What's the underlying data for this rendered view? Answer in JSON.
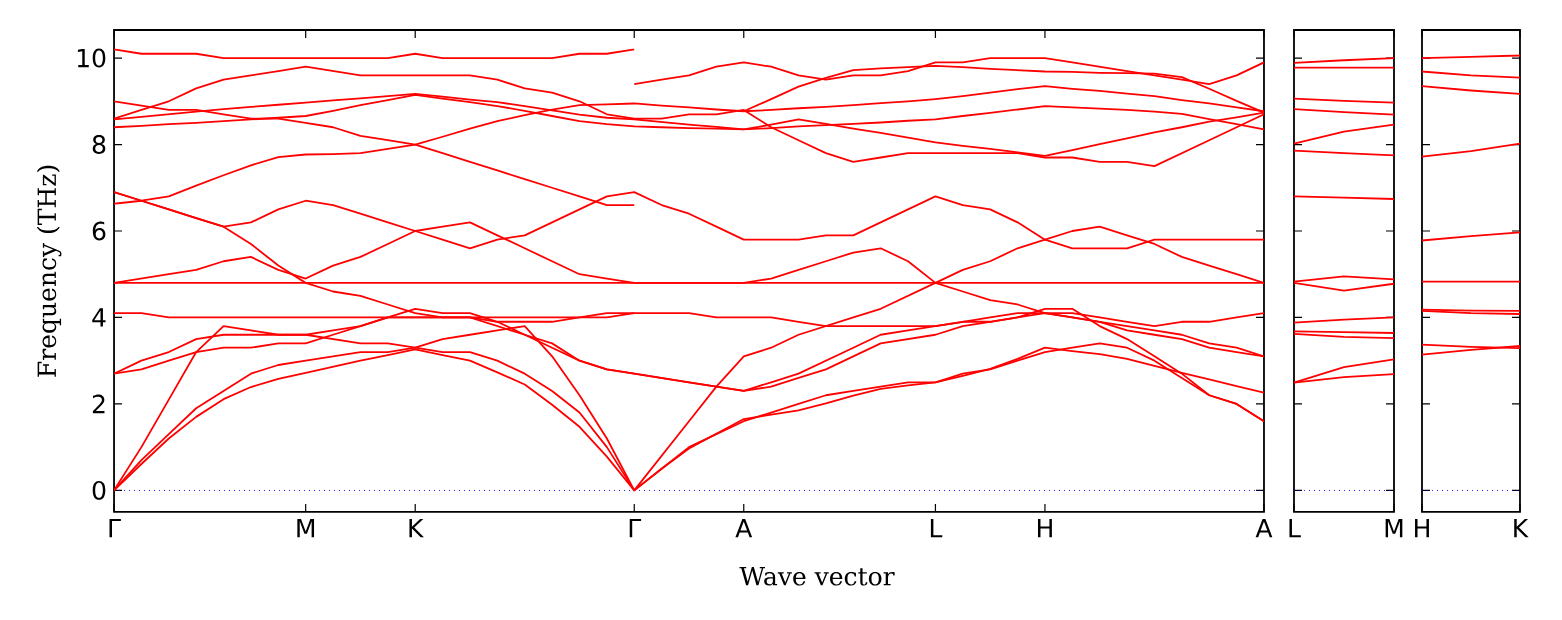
{
  "chart_data": [
    {
      "type": "line",
      "ylabel": "Frequency (THz)",
      "xlabel": "Wave vector",
      "color": "#ff0000",
      "categories": [
        "Γ",
        null,
        null,
        null,
        null,
        null,
        null,
        "M",
        null,
        null,
        null,
        "K",
        null,
        null,
        null,
        null,
        null,
        null,
        null,
        "Γ",
        null,
        null,
        null,
        "A",
        null,
        null,
        null,
        null,
        null,
        null,
        "L",
        null,
        null,
        null,
        "H",
        null,
        null,
        null,
        null,
        null,
        null,
        null,
        "A"
      ],
      "ylim": [
        -0.5,
        10.65
      ],
      "yticks": [
        0,
        2,
        4,
        6,
        8,
        10
      ],
      "ref_lines": [
        {
          "axis": "y",
          "value": 0,
          "color": "#0000ff",
          "line_style": "dotted"
        }
      ],
      "series": [
        {
          "values": [
            0,
            0.61,
            1.2,
            1.7,
            2.11,
            2.39,
            2.58,
            2.72,
            2.86,
            3,
            3.13,
            3.26,
            3.13,
            3,
            2.73,
            2.45,
            1.98,
            1.47,
            0.78,
            0,
            0.5,
            0.97,
            1.31,
            1.65,
            1.75,
            1.85,
            2.01,
            2.19,
            2.35,
            2.43,
            2.5,
            2.65,
            2.81,
            3.04,
            3.3,
            3.22,
            3.15,
            3.04,
            2.88,
            2.72,
            2.57,
            2.41,
            2.26
          ]
        },
        {
          "values": [
            0,
            0.7,
            1.3,
            1.9,
            2.3,
            2.7,
            2.9,
            3.0,
            3.1,
            3.2,
            3.2,
            3.3,
            3.2,
            3.2,
            3.0,
            2.7,
            2.3,
            1.8,
            1.0,
            0,
            0.5,
            1.0,
            1.3,
            1.6,
            1.8,
            2.0,
            2.2,
            2.3,
            2.4,
            2.5,
            2.5,
            2.7,
            2.8,
            3.0,
            3.2,
            3.3,
            3.4,
            3.3,
            3.0,
            2.6,
            2.2,
            2.0,
            1.6
          ]
        },
        {
          "values": [
            0,
            1.0,
            2.1,
            3.2,
            3.8,
            3.7,
            3.6,
            3.6,
            3.5,
            3.4,
            3.4,
            3.3,
            3.5,
            3.6,
            3.7,
            3.8,
            3.1,
            2.2,
            1.2,
            0,
            0.8,
            1.6,
            2.4,
            3.1,
            3.3,
            3.6,
            3.8,
            4.0,
            4.2,
            4.5,
            4.8,
            5.1,
            5.3,
            5.6,
            5.8,
            6.0,
            6.1,
            5.9,
            5.7,
            5.4,
            5.2,
            5.0,
            4.8
          ]
        },
        {
          "values": [
            2.7,
            2.8,
            3.0,
            3.2,
            3.3,
            3.3,
            3.4,
            3.4,
            3.6,
            3.8,
            4.0,
            4.2,
            4.1,
            4.1,
            3.9,
            3.6,
            3.3,
            3.0,
            2.8,
            2.7,
            2.6,
            2.5,
            2.4,
            2.3,
            2.4,
            2.6,
            2.8,
            3.1,
            3.4,
            3.5,
            3.6,
            3.8,
            3.9,
            4.0,
            4.2,
            4.2,
            3.8,
            3.5,
            3.1,
            2.7,
            2.2,
            2.0,
            1.6
          ]
        },
        {
          "values": [
            6.9,
            6.7,
            6.5,
            6.3,
            6.1,
            5.7,
            5.2,
            4.8,
            4.6,
            4.5,
            4.3,
            4.1,
            4.0,
            4.0,
            3.8,
            3.6,
            3.4,
            3.0,
            2.8,
            2.7,
            2.6,
            2.5,
            2.4,
            2.3,
            2.5,
            2.7,
            3.0,
            3.3,
            3.6,
            3.7,
            3.8,
            3.9,
            3.9,
            4.0,
            4.1,
            4.0,
            3.9,
            3.7,
            3.6,
            3.5,
            3.3,
            3.2,
            3.1
          ]
        },
        {
          "values": [
            2.7,
            3.0,
            3.2,
            3.5,
            3.6,
            3.6,
            3.6,
            3.6,
            3.7,
            3.8,
            4.0,
            4.0,
            4.0,
            4.0,
            3.9,
            3.9,
            3.9,
            4.0,
            4.0,
            4.1,
            4.1,
            4.1,
            4.0,
            4.0,
            4.0,
            3.9,
            3.8,
            3.8,
            3.8,
            3.8,
            3.8,
            3.9,
            4.0,
            4.1,
            4.1,
            4.1,
            4.0,
            3.9,
            3.8,
            3.9,
            3.9,
            4.0,
            4.1
          ]
        },
        {
          "values": [
            4.1,
            4.1,
            4.0,
            4.0,
            4.0,
            4.0,
            4.0,
            4.0,
            4.0,
            4.0,
            4.0,
            4.0,
            4.0,
            4.0,
            4.0,
            4.0,
            4.0,
            4.0,
            4.1,
            4.1,
            null,
            null,
            null,
            null,
            null,
            null,
            null,
            null,
            null,
            null,
            null,
            null,
            null,
            null,
            null,
            null,
            null,
            null,
            null,
            null,
            null,
            null,
            null
          ]
        },
        {
          "values": [
            4.8,
            4.8,
            4.8,
            4.8,
            4.8,
            4.8,
            4.8,
            4.8,
            4.8,
            4.8,
            4.8,
            4.8,
            4.8,
            4.8,
            4.8,
            4.8,
            4.8,
            4.8,
            4.8,
            4.8,
            4.8,
            4.8,
            4.8,
            4.8,
            4.8,
            4.8,
            4.8,
            4.8,
            4.8,
            4.8,
            4.8,
            4.8,
            4.8,
            4.8,
            4.8,
            4.8,
            4.8,
            4.8,
            4.8,
            4.8,
            4.8,
            4.8,
            4.8
          ]
        },
        {
          "values": [
            4.8,
            4.9,
            5.0,
            5.1,
            5.3,
            5.4,
            5.1,
            4.9,
            5.2,
            5.4,
            5.7,
            6.0,
            6.1,
            6.2,
            5.9,
            5.6,
            5.3,
            5.0,
            4.9,
            4.8,
            4.8,
            4.8,
            4.8,
            4.8,
            4.9,
            5.1,
            5.3,
            5.5,
            5.6,
            5.3,
            4.8,
            4.6,
            4.4,
            4.3,
            4.1,
            4.0,
            3.9,
            3.8,
            3.7,
            3.6,
            3.4,
            3.3,
            3.1
          ]
        },
        {
          "values": [
            6.9,
            6.7,
            6.5,
            6.3,
            6.1,
            6.2,
            6.5,
            6.7,
            6.6,
            6.4,
            6.2,
            6.0,
            5.8,
            5.6,
            5.8,
            5.9,
            6.2,
            6.5,
            6.8,
            6.9,
            6.6,
            6.4,
            6.1,
            5.8,
            5.8,
            5.8,
            5.9,
            5.9,
            6.2,
            6.5,
            6.8,
            6.6,
            6.5,
            6.2,
            5.8,
            5.6,
            5.6,
            5.6,
            5.8,
            5.8,
            5.8,
            5.8,
            5.8
          ]
        },
        {
          "values": [
            10.2,
            10.1,
            10.1,
            10.1,
            10.0,
            10.0,
            10.0,
            10.0,
            10.0,
            10.0,
            10.0,
            10.1,
            10.0,
            10.0,
            10.0,
            10.0,
            10.0,
            10.1,
            10.1,
            10.2,
            null,
            null,
            null,
            null,
            null,
            null,
            null,
            null,
            null,
            null,
            null,
            null,
            null,
            null,
            null,
            null,
            null,
            null,
            null,
            null,
            null,
            null,
            null
          ]
        },
        {
          "values": [
            null,
            null,
            null,
            null,
            null,
            null,
            null,
            null,
            null,
            null,
            null,
            null,
            null,
            null,
            null,
            null,
            null,
            null,
            null,
            9.4,
            9.5,
            9.6,
            9.8,
            9.9,
            9.8,
            9.6,
            9.5,
            9.6,
            9.6,
            9.7,
            9.9,
            9.9,
            10.0,
            10.0,
            10.0,
            9.9,
            9.8,
            9.7,
            9.6,
            9.5,
            9.4,
            9.6,
            9.9
          ]
        },
        {
          "values": [
            8.6,
            8.8,
            9.0,
            9.3,
            9.5,
            9.6,
            9.7,
            9.8,
            9.7,
            9.6,
            9.6,
            9.6,
            9.6,
            9.6,
            9.5,
            9.3,
            9.2,
            9.0,
            8.7,
            8.6,
            8.6,
            8.7,
            8.7,
            8.8,
            8.4,
            8.1,
            7.8,
            7.6,
            7.7,
            7.8,
            7.8,
            7.8,
            7.8,
            7.8,
            7.7,
            7.7,
            7.6,
            7.6,
            7.5,
            7.8,
            8.1,
            8.4,
            8.7
          ]
        },
        {
          "values": [
            9.0,
            8.9,
            8.8,
            8.8,
            8.7,
            8.6,
            8.6,
            8.5,
            8.4,
            8.2,
            8.1,
            8.0,
            7.8,
            7.6,
            7.4,
            7.2,
            7.0,
            6.8,
            6.6,
            6.6,
            null,
            null,
            null,
            null,
            null,
            null,
            null,
            null,
            null,
            null,
            null,
            null,
            null,
            null,
            null,
            null,
            null,
            null,
            null,
            null,
            null,
            null,
            null
          ]
        },
        {
          "values": [
            null,
            null,
            null,
            null,
            null,
            null,
            null,
            null,
            null,
            null,
            null,
            null,
            null,
            null,
            null,
            null,
            null,
            null,
            null,
            null,
            null,
            null,
            null,
            8.77,
            9.05,
            9.34,
            9.54,
            9.72,
            9.76,
            9.79,
            9.82,
            9.79,
            9.75,
            9.72,
            9.69,
            9.68,
            9.66,
            9.65,
            9.64,
            9.56,
            9.29,
            9.01,
            8.74
          ]
        },
        {
          "values": [
            6.63,
            6.7,
            6.8,
            7.05,
            7.29,
            7.52,
            7.71,
            7.77,
            7.78,
            7.8,
            7.9,
            8,
            8.18,
            8.37,
            8.54,
            8.68,
            8.81,
            8.91,
            8.93,
            8.95,
            8.9,
            8.86,
            8.81,
            8.77,
            8.8,
            8.84,
            8.87,
            8.91,
            8.96,
            9,
            9.05,
            9.12,
            9.2,
            9.28,
            9.35,
            9.29,
            9.24,
            9.18,
            9.12,
            9.03,
            8.95,
            8.86,
            8.77
          ]
        },
        {
          "values": [
            8.58,
            8.64,
            8.7,
            8.76,
            8.82,
            8.87,
            8.92,
            8.97,
            9.02,
            9.07,
            9.12,
            9.17,
            9.11,
            9.04,
            8.98,
            8.89,
            8.79,
            8.69,
            8.62,
            8.58,
            8.52,
            8.46,
            8.41,
            8.35,
            8.38,
            8.42,
            8.45,
            8.48,
            8.51,
            8.55,
            8.58,
            8.66,
            8.73,
            8.81,
            8.89,
            8.86,
            8.83,
            8.8,
            8.76,
            8.71,
            8.59,
            8.47,
            8.35
          ]
        },
        {
          "values": [
            8.4,
            8.43,
            8.47,
            8.5,
            8.54,
            8.58,
            8.62,
            8.66,
            8.78,
            8.91,
            9.03,
            9.15,
            9.06,
            8.98,
            8.89,
            8.78,
            8.66,
            8.54,
            8.47,
            8.42,
            8.4,
            8.38,
            8.37,
            8.35,
            8.46,
            8.58,
            8.48,
            8.37,
            8.27,
            8.16,
            8.05,
            7.97,
            7.9,
            7.82,
            7.74,
            7.87,
            8.01,
            8.14,
            8.28,
            8.4,
            8.53,
            8.63,
            8.74
          ]
        }
      ]
    },
    {
      "type": "line",
      "color": "#ff0000",
      "categories": [
        "L",
        null,
        "M"
      ],
      "ylim": [
        -0.5,
        10.65
      ],
      "yticks": [
        0,
        2,
        4,
        6,
        8,
        10
      ],
      "tick_labels": "x",
      "ref_lines": [
        {
          "axis": "y",
          "value": 0,
          "color": "#0000ff",
          "line_style": "dotted"
        }
      ],
      "series": [
        {
          "values": [
            9.89,
            9.95,
            10.0
          ]
        },
        {
          "values": [
            9.78,
            9.78,
            9.78
          ]
        },
        {
          "values": [
            9.06,
            9.01,
            8.97
          ]
        },
        {
          "values": [
            8.82,
            8.75,
            8.69
          ]
        },
        {
          "values": [
            8.02,
            8.3,
            8.46
          ]
        },
        {
          "values": [
            7.86,
            7.8,
            7.75
          ]
        },
        {
          "values": [
            6.8,
            6.77,
            6.74
          ]
        },
        {
          "values": [
            4.83,
            4.95,
            4.88
          ]
        },
        {
          "values": [
            4.8,
            4.62,
            4.78
          ]
        },
        {
          "values": [
            3.88,
            3.95,
            4.0
          ]
        },
        {
          "values": [
            3.68,
            3.66,
            3.64
          ]
        },
        {
          "values": [
            3.62,
            3.55,
            3.52
          ]
        },
        {
          "values": [
            2.49,
            2.85,
            3.03
          ]
        },
        {
          "values": [
            2.49,
            2.62,
            2.69
          ]
        }
      ]
    },
    {
      "type": "line",
      "color": "#ff0000",
      "categories": [
        "H",
        null,
        "K"
      ],
      "ylim": [
        -0.5,
        10.65
      ],
      "yticks": [
        0,
        2,
        4,
        6,
        8,
        10
      ],
      "tick_labels": "x",
      "ref_lines": [
        {
          "axis": "y",
          "value": 0,
          "color": "#0000ff",
          "line_style": "dotted"
        }
      ],
      "series": [
        {
          "values": [
            10.0,
            10.03,
            10.06
          ]
        },
        {
          "values": [
            9.69,
            9.6,
            9.55
          ]
        },
        {
          "values": [
            9.35,
            9.25,
            9.17
          ]
        },
        {
          "values": [
            7.72,
            7.85,
            8.02
          ]
        },
        {
          "values": [
            5.78,
            5.88,
            5.97
          ]
        },
        {
          "values": [
            4.83,
            4.83,
            4.83
          ]
        },
        {
          "values": [
            4.18,
            4.16,
            4.15
          ]
        },
        {
          "values": [
            4.15,
            4.1,
            4.08
          ]
        },
        {
          "values": [
            3.37,
            3.32,
            3.29
          ]
        },
        {
          "values": [
            3.14,
            3.25,
            3.34
          ]
        }
      ]
    }
  ]
}
